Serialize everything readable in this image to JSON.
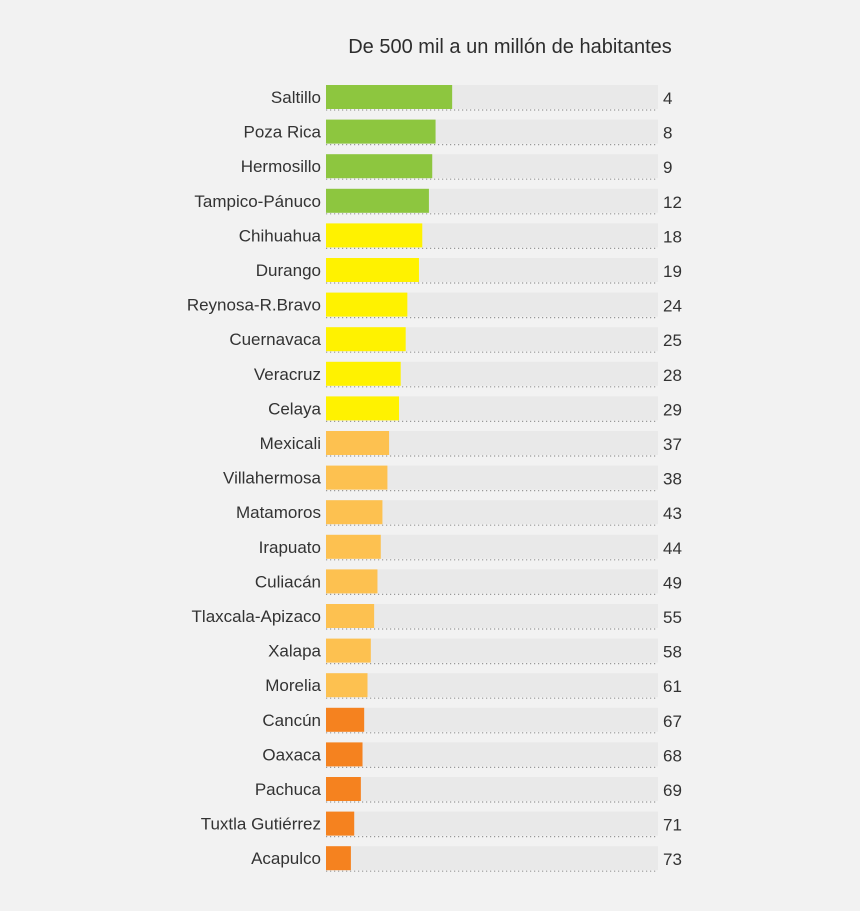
{
  "chart_data": {
    "type": "bar",
    "orientation": "horizontal",
    "title": "De 500 mil a un millón de habitantes",
    "xlabel": "",
    "ylabel": "",
    "categories": [
      "Saltillo",
      "Poza Rica",
      "Hermosillo",
      "Tampico-Pánuco",
      "Chihuahua",
      "Durango",
      "Reynosa-R.Bravo",
      "Cuernavaca",
      "Veracruz",
      "Celaya",
      "Mexicali",
      "Villahermosa",
      "Matamoros",
      "Irapuato",
      "Culiacán",
      "Tlaxcala-Apizaco",
      "Xalapa",
      "Morelia",
      "Cancún",
      "Oaxaca",
      "Pachuca",
      "Tuxtla Gutiérrez",
      "Acapulco"
    ],
    "values": [
      4,
      8,
      9,
      12,
      18,
      19,
      24,
      25,
      28,
      29,
      37,
      38,
      43,
      44,
      49,
      55,
      58,
      61,
      67,
      68,
      69,
      71,
      73
    ],
    "bar_fraction": [
      0.38,
      0.33,
      0.32,
      0.31,
      0.29,
      0.28,
      0.245,
      0.24,
      0.225,
      0.22,
      0.19,
      0.185,
      0.17,
      0.165,
      0.155,
      0.145,
      0.135,
      0.125,
      0.115,
      0.11,
      0.105,
      0.085,
      0.075
    ],
    "colors": {
      "green": "#8dc63f",
      "yellow": "#fff200",
      "light_orange": "#fdc150",
      "orange": "#f5821f",
      "track": "#e9e9e9",
      "dots": "#999999"
    },
    "color_groups": [
      "green",
      "green",
      "green",
      "green",
      "yellow",
      "yellow",
      "yellow",
      "yellow",
      "yellow",
      "yellow",
      "light_orange",
      "light_orange",
      "light_orange",
      "light_orange",
      "light_orange",
      "light_orange",
      "light_orange",
      "light_orange",
      "orange",
      "orange",
      "orange",
      "orange",
      "orange"
    ],
    "grid": false,
    "legend": "none"
  }
}
